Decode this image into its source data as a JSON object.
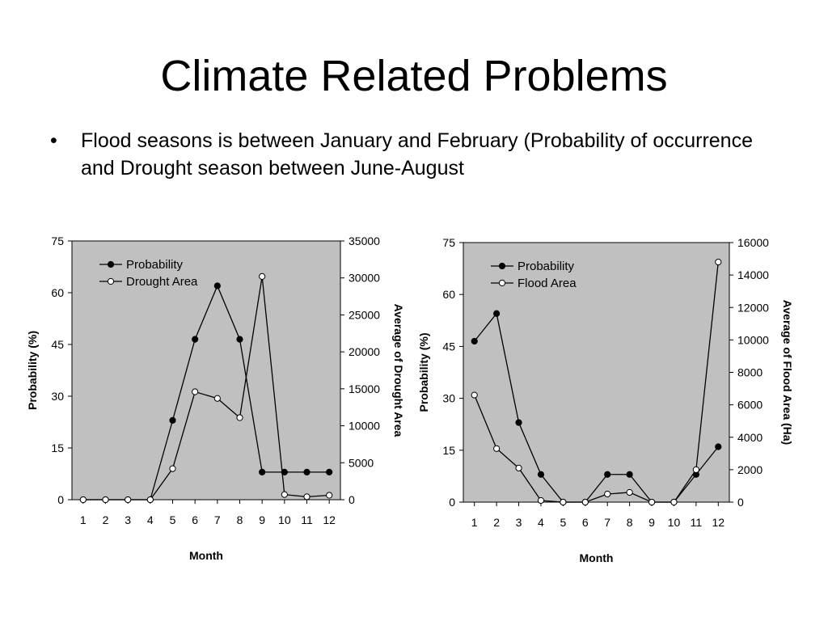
{
  "slide": {
    "title": "Climate Related Problems",
    "bullet_symbol": "•",
    "bullet_text": "Flood seasons is between January and February (Probability of occurrence and Drought season between June-August"
  },
  "colors": {
    "plot_background": "#c0c0c0",
    "line": "#000000",
    "open_marker": "#ffffff"
  },
  "chart_data": [
    {
      "type": "line",
      "xlabel": "Month",
      "ylabel": "Probability (%)",
      "y2label": "Average of Drought Area",
      "x": [
        1,
        2,
        3,
        4,
        5,
        6,
        7,
        8,
        9,
        10,
        11,
        12
      ],
      "ylim": [
        0,
        75
      ],
      "yticks": [
        0,
        15,
        30,
        45,
        60,
        75
      ],
      "y2lim": [
        0,
        35000
      ],
      "y2ticks": [
        0,
        5000,
        10000,
        15000,
        20000,
        25000,
        30000,
        35000
      ],
      "legend_position": "top-left",
      "series": [
        {
          "name": "Probability",
          "axis": "left",
          "marker": "filled",
          "values": [
            0,
            0,
            0,
            0,
            23,
            46.5,
            62,
            46.5,
            8,
            8,
            8,
            8
          ]
        },
        {
          "name": "Drought Area",
          "axis": "right",
          "marker": "open",
          "values": [
            0,
            0,
            0,
            0,
            4200,
            14600,
            13700,
            11100,
            30200,
            700,
            400,
            600
          ]
        }
      ]
    },
    {
      "type": "line",
      "xlabel": "Month",
      "ylabel": "Probability (%)",
      "y2label": "Average of Flood Area (Ha)",
      "x": [
        1,
        2,
        3,
        4,
        5,
        6,
        7,
        8,
        9,
        10,
        11,
        12
      ],
      "ylim": [
        0,
        75
      ],
      "yticks": [
        0,
        15,
        30,
        45,
        60,
        75
      ],
      "y2lim": [
        0,
        16000
      ],
      "y2ticks": [
        0,
        2000,
        4000,
        6000,
        8000,
        10000,
        12000,
        14000,
        16000
      ],
      "legend_position": "top-left",
      "series": [
        {
          "name": "Probability",
          "axis": "left",
          "marker": "filled",
          "values": [
            46.5,
            54.5,
            23,
            8,
            0,
            0,
            8,
            8,
            0,
            0,
            8,
            16
          ]
        },
        {
          "name": "Flood Area",
          "axis": "right",
          "marker": "open",
          "values": [
            6600,
            3300,
            2100,
            100,
            0,
            0,
            500,
            600,
            0,
            0,
            2000,
            14800
          ]
        }
      ]
    }
  ]
}
